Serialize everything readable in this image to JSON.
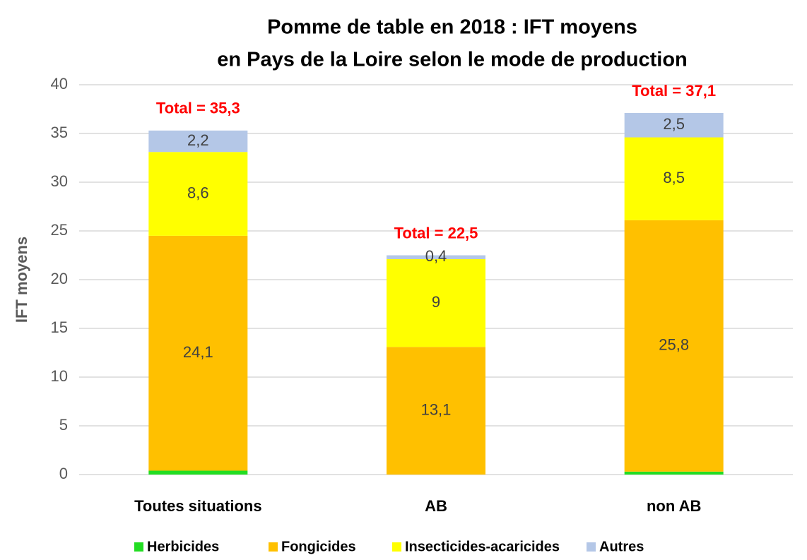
{
  "chart_data": {
    "type": "stacked_bar",
    "title": [
      "Pomme de table en 2018 : IFT moyens",
      "en Pays de la Loire selon le mode de production"
    ],
    "y_label": "IFT moyens",
    "categories": [
      "Toutes situations",
      "AB",
      "non AB"
    ],
    "series": [
      {
        "name": "Herbicides",
        "color": "#22dd22",
        "values": [
          0.4,
          0,
          0.3
        ]
      },
      {
        "name": "Fongicides",
        "color": "#ffc000",
        "values": [
          24.1,
          13.1,
          25.8
        ],
        "value_labels": [
          "24,1",
          "13,1",
          "25,8"
        ]
      },
      {
        "name": "Insecticides-acaricides",
        "color": "#ffff00",
        "values": [
          8.6,
          9,
          8.5
        ],
        "value_labels": [
          "8,6",
          "9",
          "8,5"
        ]
      },
      {
        "name": "Autres",
        "color": "#b4c7e7",
        "values": [
          2.2,
          0.4,
          2.5
        ],
        "value_labels": [
          "2,2",
          "0,4",
          "2,5"
        ]
      }
    ],
    "annotations": [
      {
        "text": "Total = 35,3",
        "value": 35.3,
        "color": "#ff0000"
      },
      {
        "text": "Total = 22,5",
        "value": 22.5,
        "color": "#ff0000"
      },
      {
        "text": "Total = 37,1",
        "value": 37.1,
        "color": "#ff0000"
      }
    ],
    "ylim": [
      0,
      40
    ],
    "yticks": [
      0,
      5,
      10,
      15,
      20,
      25,
      30,
      35,
      40
    ],
    "grid": true,
    "legend": "bottom"
  }
}
